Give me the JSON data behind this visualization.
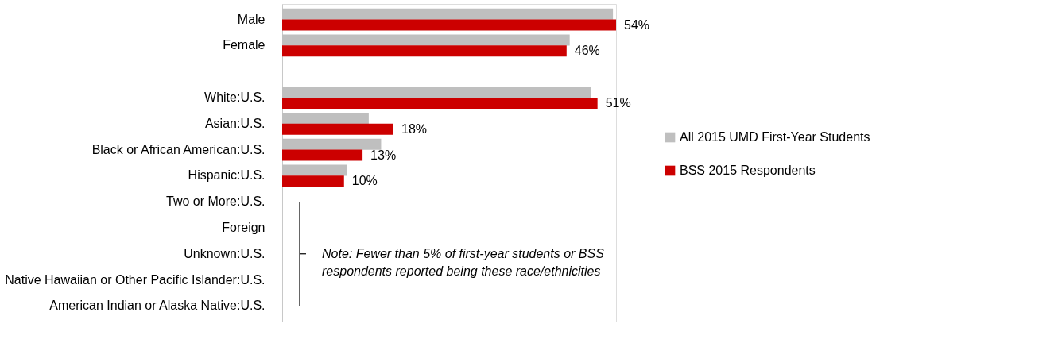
{
  "chart_data": {
    "type": "bar",
    "orientation": "horizontal",
    "categories": [
      "Male",
      "Female",
      null,
      "White:U.S.",
      "Asian:U.S.",
      "Black or African American:U.S.",
      "Hispanic:U.S.",
      "Two or More:U.S.",
      "Foreign",
      "Unknown:U.S.",
      "Native Hawaiian or Other Pacific Islander:U.S.",
      "American Indian or Alaska Native:U.S."
    ],
    "series": [
      {
        "name": "All 2015 UMD First-Year Students",
        "color": "#bfbfbf",
        "values": [
          53.5,
          46.5,
          null,
          50,
          14,
          16,
          10.5,
          null,
          null,
          null,
          null,
          null
        ]
      },
      {
        "name": "BSS 2015 Respondents",
        "color": "#cc0000",
        "values": [
          54,
          46,
          null,
          51,
          18,
          13,
          10,
          null,
          null,
          null,
          null,
          null
        ],
        "value_labels": [
          "54%",
          "46%",
          null,
          "51%",
          "18%",
          "13%",
          "10%",
          null,
          null,
          null,
          null,
          null
        ]
      }
    ],
    "annotations": [
      "Note: Fewer than 5% of first-year students or BSS respondents reported being these race/ethnicities"
    ],
    "legend": "right",
    "grid": false
  }
}
